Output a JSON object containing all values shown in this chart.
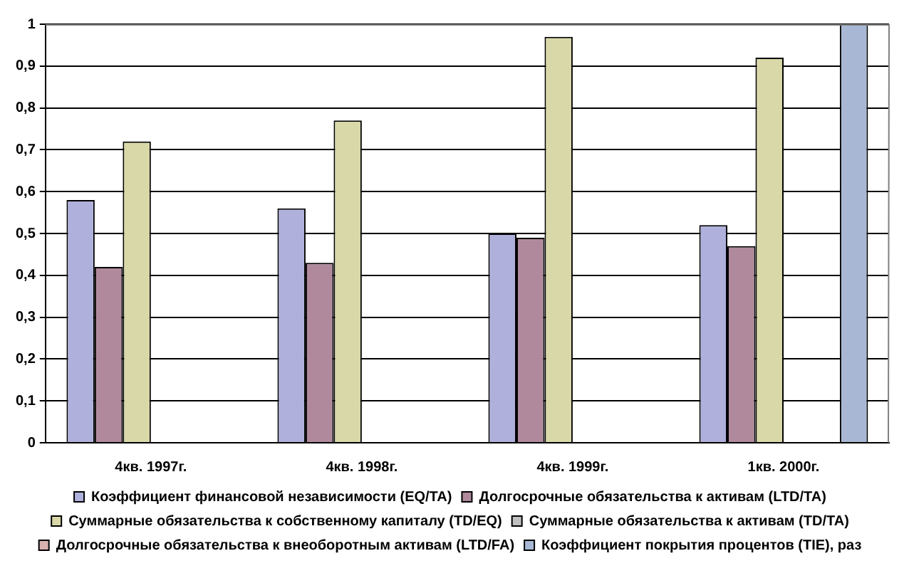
{
  "chart_data": {
    "type": "bar",
    "categories": [
      "4кв. 1997г.",
      "4кв. 1998г.",
      "4кв. 1999г.",
      "1кв. 2000г."
    ],
    "series": [
      {
        "name": "Коэффициент финансовой независимости (EQ/TA)",
        "color": "#b0b0dc",
        "values": [
          0.58,
          0.56,
          0.5,
          0.52
        ]
      },
      {
        "name": "Долгосрочные обязательства к активам (LTD/TA)",
        "color": "#b08a9c",
        "values": [
          0.42,
          0.43,
          0.49,
          0.47
        ]
      },
      {
        "name": "Суммарные обязательства к собственному капиталу (TD/EQ)",
        "color": "#d8d8a8",
        "values": [
          0.72,
          0.77,
          0.97,
          0.92
        ]
      },
      {
        "name": "Суммарные обязательства к активам (TD/TA)",
        "color": "#c0c0c0",
        "values": [
          null,
          null,
          null,
          null
        ]
      },
      {
        "name": "Долгосрочные обязательства к внеоборотным активам (LTD/FA)",
        "color": "#d8b0b0",
        "values": [
          null,
          null,
          null,
          null
        ]
      },
      {
        "name": "Коэффициент покрытия процентов (TIE), раз",
        "color": "#a8b8d4",
        "values": [
          null,
          null,
          null,
          1
        ]
      }
    ],
    "ylim": [
      0,
      1
    ],
    "yticks": [
      0,
      {
        "value": 0.1,
        "label": "0,1"
      },
      {
        "value": 0.2,
        "label": "0,2"
      },
      {
        "value": 0.3,
        "label": "0,3"
      },
      {
        "value": 0.4,
        "label": "0,4"
      },
      {
        "value": 0.5,
        "label": "0,5"
      },
      {
        "value": 0.6,
        "label": "0,6"
      },
      {
        "value": 0.7,
        "label": "0,7"
      },
      {
        "value": 0.8,
        "label": "0,8"
      },
      {
        "value": 0.9,
        "label": "0,9"
      },
      1
    ],
    "grid": "y",
    "legend": "bottom"
  }
}
